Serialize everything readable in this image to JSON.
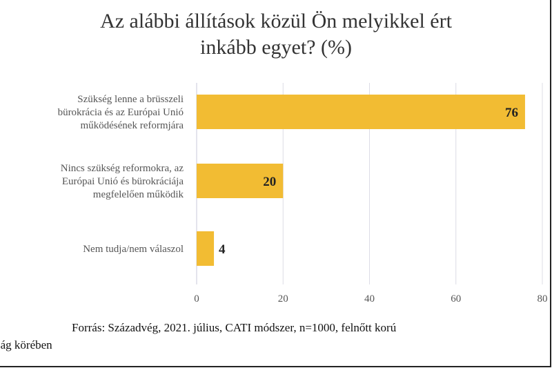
{
  "chart_data": {
    "type": "bar",
    "orientation": "horizontal",
    "title": "Az alábbi állítások közül Ön melyikkel ért inkább egyet? (%)",
    "title_lines": [
      "Az alábbi állítások közül Ön melyikkel ért",
      "inkább egyet? (%)"
    ],
    "categories": [
      "Szükség lenne a brüsszeli bürokrácia és az Európai Unió működésének reformjára",
      "Nincs szükség reformokra, az Európai Unió és bürokráciája megfelelően működik",
      "Nem tudja/nem válaszol"
    ],
    "category_lines": [
      [
        "Szükség lenne a brüsszeli",
        "bürokrácia és az Európai Unió",
        "működésének reformjára"
      ],
      [
        "Nincs szükség reformokra, az",
        "Európai Unió és bürokráciája",
        "megfelelően működik"
      ],
      [
        "Nem tudja/nem válaszol"
      ]
    ],
    "values": [
      76,
      20,
      4
    ],
    "value_labels": [
      "76",
      "20",
      "4"
    ],
    "xlim": [
      0,
      80
    ],
    "xticks": [
      0,
      20,
      40,
      60,
      80
    ],
    "xtick_labels": [
      "0",
      "20",
      "40",
      "60",
      "80"
    ],
    "grid": true,
    "bar_color": "#F2BC33",
    "grid_color": "#DCDCE6"
  },
  "source": {
    "line1": "Forrás: Századvég, 2021. július, CATI módszer, n=1000, felnőtt korú",
    "line2": "ság körében"
  }
}
